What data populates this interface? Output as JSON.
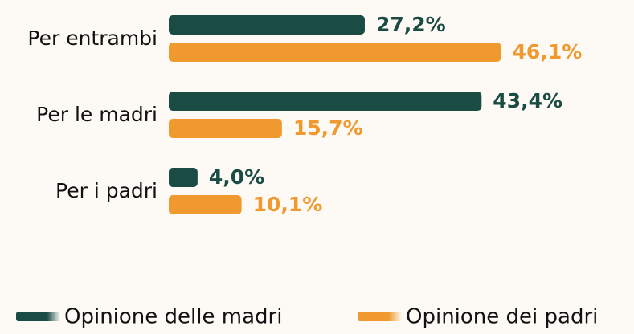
{
  "chart_data": {
    "type": "bar",
    "orientation": "horizontal",
    "categories": [
      "Per entrambi",
      "Per le madri",
      "Per i padri"
    ],
    "series": [
      {
        "name": "Opinione delle madri",
        "color": "#1b4c44",
        "values": [
          27.2,
          43.4,
          4.0
        ],
        "value_labels": [
          "27,2%",
          "43,4%",
          "4,0%"
        ]
      },
      {
        "name": "Opinione dei padri",
        "color": "#f0992e",
        "values": [
          46.1,
          15.7,
          10.1
        ],
        "value_labels": [
          "46,1%",
          "15,7%",
          "10,1%"
        ]
      }
    ],
    "legend": "bottom"
  }
}
